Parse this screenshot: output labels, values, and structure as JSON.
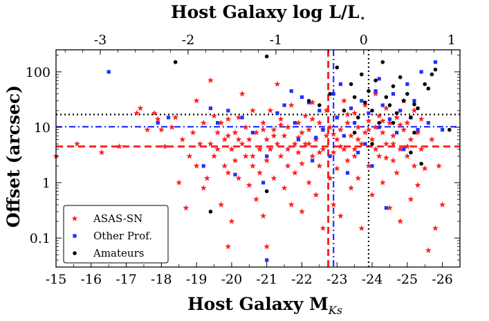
{
  "chart_data": {
    "type": "scatter",
    "title": "",
    "xlabel": "Host Galaxy M",
    "xlabel_sub": "Ks",
    "ylabel": "Offset (arcsec)",
    "top_xlabel": "Host Galaxy log L/L",
    "top_xlabel_sub": "⋆",
    "x_reversed": true,
    "xlim": [
      -15,
      -26.5
    ],
    "ylim": [
      0.03,
      250
    ],
    "y_scale": "log",
    "x_ticks": [
      -15,
      -16,
      -17,
      -18,
      -19,
      -20,
      -21,
      -22,
      -23,
      -24,
      -25,
      -26
    ],
    "x_tick_labels": [
      "-15",
      "-16",
      "-17",
      "-18",
      "-19",
      "-20",
      "-21",
      "-22",
      "-23",
      "-24",
      "-25",
      "-26"
    ],
    "y_ticks": [
      0.1,
      1,
      10,
      100
    ],
    "y_tick_labels": [
      "0.1",
      "1",
      "10",
      "100"
    ],
    "top_ticks_logL": [
      -3,
      -2,
      -1,
      0,
      1
    ],
    "top_tick_labels": [
      "-3",
      "-2",
      "-1",
      "0",
      "1"
    ],
    "top_mapping": {
      "note": "log L/L* = 0 at M_Ks = -23.76; 1 dex = 2.5 mag",
      "m_star": -23.76
    },
    "legend_position": "lower-left",
    "reference_lines": [
      {
        "series": "ASAS-SN",
        "orientation": "horizontal",
        "value": 4.5,
        "style": "dashed",
        "color": "#ff2020"
      },
      {
        "series": "ASAS-SN",
        "orientation": "vertical",
        "value": -22.75,
        "style": "dashed",
        "color": "#ff2020"
      },
      {
        "series": "Other Prof.",
        "orientation": "horizontal",
        "value": 10.2,
        "style": "dashdot",
        "color": "#2030ff"
      },
      {
        "series": "Other Prof.",
        "orientation": "vertical",
        "value": -22.9,
        "style": "dashdot",
        "color": "#2030ff"
      },
      {
        "series": "Amateurs",
        "orientation": "horizontal",
        "value": 17,
        "style": "dotted",
        "color": "#000000"
      },
      {
        "series": "Amateurs",
        "orientation": "vertical",
        "value": -23.9,
        "style": "dotted",
        "color": "#000000"
      }
    ],
    "series": [
      {
        "name": "ASAS-SN",
        "marker": "star",
        "color": "#ff2020",
        "points": [
          [
            -15.0,
            3.0
          ],
          [
            -15.6,
            5.0
          ],
          [
            -16.3,
            3.5
          ],
          [
            -16.8,
            4.5
          ],
          [
            -17.3,
            18
          ],
          [
            -17.4,
            22
          ],
          [
            -17.6,
            9
          ],
          [
            -17.8,
            18
          ],
          [
            -17.9,
            14
          ],
          [
            -18.0,
            9
          ],
          [
            -18.1,
            4.5
          ],
          [
            -18.3,
            10
          ],
          [
            -18.4,
            15
          ],
          [
            -18.5,
            1.0
          ],
          [
            -18.6,
            6
          ],
          [
            -18.7,
            0.35
          ],
          [
            -18.8,
            3
          ],
          [
            -18.9,
            8
          ],
          [
            -19.0,
            30
          ],
          [
            -19.0,
            2.0
          ],
          [
            -19.1,
            5
          ],
          [
            -19.2,
            0.8
          ],
          [
            -19.2,
            12
          ],
          [
            -19.3,
            1.2
          ],
          [
            -19.4,
            70
          ],
          [
            -19.4,
            5
          ],
          [
            -19.5,
            16
          ],
          [
            -19.5,
            3
          ],
          [
            -19.6,
            8
          ],
          [
            -19.7,
            0.4
          ],
          [
            -19.7,
            12
          ],
          [
            -19.8,
            6
          ],
          [
            -19.8,
            2
          ],
          [
            -19.9,
            1.5
          ],
          [
            -19.9,
            0.07
          ],
          [
            -19.9,
            14
          ],
          [
            -20.0,
            0.2
          ],
          [
            -20.0,
            4
          ],
          [
            -20.1,
            8
          ],
          [
            -20.1,
            2.5
          ],
          [
            -20.2,
            1.2
          ],
          [
            -20.2,
            15
          ],
          [
            -20.3,
            40
          ],
          [
            -20.3,
            5
          ],
          [
            -20.4,
            3
          ],
          [
            -20.4,
            10
          ],
          [
            -20.5,
            0.9
          ],
          [
            -20.5,
            6
          ],
          [
            -20.6,
            2
          ],
          [
            -20.6,
            20
          ],
          [
            -20.7,
            0.5
          ],
          [
            -20.7,
            8
          ],
          [
            -20.8,
            4
          ],
          [
            -20.8,
            1.5
          ],
          [
            -20.9,
            12
          ],
          [
            -20.9,
            0.25
          ],
          [
            -21.0,
            6
          ],
          [
            -21.0,
            2.5
          ],
          [
            -21.0,
            0.07
          ],
          [
            -21.1,
            20
          ],
          [
            -21.1,
            4
          ],
          [
            -21.2,
            9
          ],
          [
            -21.2,
            1.2
          ],
          [
            -21.3,
            60
          ],
          [
            -21.3,
            5
          ],
          [
            -21.4,
            3
          ],
          [
            -21.4,
            14
          ],
          [
            -21.5,
            0.8
          ],
          [
            -21.5,
            7
          ],
          [
            -21.6,
            2
          ],
          [
            -21.6,
            10
          ],
          [
            -21.7,
            25
          ],
          [
            -21.7,
            0.4
          ],
          [
            -21.8,
            5
          ],
          [
            -21.8,
            1.5
          ],
          [
            -21.9,
            12
          ],
          [
            -21.9,
            3.5
          ],
          [
            -22.0,
            0.3
          ],
          [
            -22.0,
            8
          ],
          [
            -22.0,
            2.2
          ],
          [
            -22.1,
            16
          ],
          [
            -22.1,
            5
          ],
          [
            -22.2,
            1.0
          ],
          [
            -22.2,
            9
          ],
          [
            -22.3,
            3
          ],
          [
            -22.3,
            28
          ],
          [
            -22.4,
            6
          ],
          [
            -22.4,
            0.6
          ],
          [
            -22.5,
            12
          ],
          [
            -22.5,
            2
          ],
          [
            -22.6,
            4
          ],
          [
            -22.6,
            0.15
          ],
          [
            -22.7,
            20
          ],
          [
            -22.7,
            7
          ],
          [
            -22.8,
            1.2
          ],
          [
            -22.8,
            10
          ],
          [
            -22.9,
            3.5
          ],
          [
            -22.9,
            0.4
          ],
          [
            -23.0,
            15
          ],
          [
            -23.0,
            6
          ],
          [
            -23.0,
            1.8
          ],
          [
            -23.1,
            9
          ],
          [
            -23.1,
            0.25
          ],
          [
            -23.2,
            4
          ],
          [
            -23.2,
            30
          ],
          [
            -23.3,
            12
          ],
          [
            -23.3,
            2.5
          ],
          [
            -23.4,
            7
          ],
          [
            -23.4,
            0.8
          ],
          [
            -23.5,
            18
          ],
          [
            -23.5,
            4
          ],
          [
            -23.6,
            1.2
          ],
          [
            -23.6,
            10
          ],
          [
            -23.7,
            5
          ],
          [
            -23.7,
            0.15
          ],
          [
            -23.8,
            25
          ],
          [
            -23.8,
            8
          ],
          [
            -23.9,
            2
          ],
          [
            -23.9,
            13
          ],
          [
            -24.0,
            6
          ],
          [
            -24.0,
            0.6
          ],
          [
            -24.1,
            40
          ],
          [
            -24.1,
            10
          ],
          [
            -24.2,
            3
          ],
          [
            -24.2,
            16
          ],
          [
            -24.3,
            1.0
          ],
          [
            -24.3,
            8
          ],
          [
            -24.4,
            5
          ],
          [
            -24.4,
            22
          ],
          [
            -24.5,
            0.35
          ],
          [
            -24.5,
            12
          ],
          [
            -24.6,
            2.5
          ],
          [
            -24.6,
            7
          ],
          [
            -24.7,
            15
          ],
          [
            -24.7,
            1.5
          ],
          [
            -24.8,
            4
          ],
          [
            -24.8,
            0.2
          ],
          [
            -24.9,
            9
          ],
          [
            -24.9,
            30
          ],
          [
            -25.0,
            3
          ],
          [
            -25.0,
            12
          ],
          [
            -25.1,
            0.5
          ],
          [
            -25.1,
            6
          ],
          [
            -25.2,
            20
          ],
          [
            -25.2,
            2
          ],
          [
            -25.3,
            8
          ],
          [
            -25.3,
            0.9
          ],
          [
            -25.4,
            4
          ],
          [
            -25.4,
            14
          ],
          [
            -25.5,
            1.8
          ],
          [
            -25.6,
            0.06
          ],
          [
            -25.7,
            6
          ],
          [
            -25.8,
            0.15
          ],
          [
            -25.9,
            2
          ],
          [
            -26.0,
            0.4
          ],
          [
            -20.2,
            6
          ],
          [
            -20.6,
            3
          ],
          [
            -21.2,
            7
          ],
          [
            -21.6,
            4
          ],
          [
            -22.2,
            5
          ],
          [
            -22.6,
            9
          ],
          [
            -23.1,
            4.5
          ],
          [
            -23.6,
            6
          ],
          [
            -24.1,
            4
          ],
          [
            -24.6,
            5
          ],
          [
            -25.0,
            4.5
          ],
          [
            -22.3,
            14
          ],
          [
            -23.3,
            17
          ],
          [
            -24.3,
            13
          ],
          [
            -21.9,
            6.5
          ],
          [
            -22.9,
            7.5
          ],
          [
            -23.9,
            9
          ],
          [
            -24.8,
            11
          ],
          [
            -20.9,
            9
          ],
          [
            -21.4,
            11
          ],
          [
            -22.5,
            3.5
          ],
          [
            -23.5,
            3
          ],
          [
            -24.4,
            2.8
          ],
          [
            -19.6,
            4
          ],
          [
            -19.9,
            7
          ]
        ]
      },
      {
        "name": "Other Prof.",
        "marker": "square",
        "color": "#2030ff",
        "points": [
          [
            -16.5,
            100
          ],
          [
            -17.9,
            12
          ],
          [
            -18.2,
            15
          ],
          [
            -19.2,
            2.0
          ],
          [
            -19.4,
            22
          ],
          [
            -19.6,
            12
          ],
          [
            -19.9,
            20
          ],
          [
            -20.3,
            15
          ],
          [
            -20.6,
            8
          ],
          [
            -20.9,
            1.0
          ],
          [
            -21.0,
            0.04
          ],
          [
            -21.0,
            3
          ],
          [
            -21.3,
            18
          ],
          [
            -21.5,
            25
          ],
          [
            -21.8,
            12
          ],
          [
            -21.9,
            6
          ],
          [
            -22.0,
            35
          ],
          [
            -22.2,
            28
          ],
          [
            -22.3,
            2.5
          ],
          [
            -22.5,
            20
          ],
          [
            -22.6,
            9
          ],
          [
            -22.8,
            3
          ],
          [
            -22.9,
            40
          ],
          [
            -23.0,
            15
          ],
          [
            -23.1,
            60
          ],
          [
            -23.2,
            7
          ],
          [
            -23.3,
            1.5
          ],
          [
            -23.4,
            22
          ],
          [
            -23.5,
            12
          ],
          [
            -23.7,
            30
          ],
          [
            -23.8,
            5
          ],
          [
            -23.9,
            18
          ],
          [
            -24.0,
            2
          ],
          [
            -24.1,
            45
          ],
          [
            -24.2,
            10
          ],
          [
            -24.3,
            25
          ],
          [
            -24.4,
            0.35
          ],
          [
            -24.5,
            14
          ],
          [
            -24.6,
            40
          ],
          [
            -24.7,
            8
          ],
          [
            -24.8,
            20
          ],
          [
            -24.9,
            4
          ],
          [
            -25.0,
            60
          ],
          [
            -25.1,
            15
          ],
          [
            -25.2,
            30
          ],
          [
            -25.3,
            9
          ],
          [
            -25.4,
            100
          ],
          [
            -25.6,
            12
          ],
          [
            -25.8,
            150
          ],
          [
            -26.0,
            9
          ],
          [
            -21.7,
            45
          ],
          [
            -22.4,
            6.5
          ],
          [
            -23.6,
            3.5
          ],
          [
            -20.1,
            1.4
          ],
          [
            -24.2,
            75
          ]
        ]
      },
      {
        "name": "Amateurs",
        "marker": "circle",
        "color": "#000000",
        "points": [
          [
            -18.4,
            150
          ],
          [
            -19.4,
            0.3
          ],
          [
            -21.0,
            190
          ],
          [
            -21.0,
            0.7
          ],
          [
            -22.2,
            30
          ],
          [
            -22.5,
            25
          ],
          [
            -22.8,
            40
          ],
          [
            -23.0,
            120
          ],
          [
            -23.2,
            20
          ],
          [
            -23.4,
            60
          ],
          [
            -23.5,
            35
          ],
          [
            -23.6,
            15
          ],
          [
            -23.7,
            90
          ],
          [
            -23.8,
            28
          ],
          [
            -23.9,
            45
          ],
          [
            -24.0,
            20
          ],
          [
            -24.1,
            70
          ],
          [
            -24.2,
            12
          ],
          [
            -24.3,
            150
          ],
          [
            -24.4,
            35
          ],
          [
            -24.5,
            25
          ],
          [
            -24.6,
            55
          ],
          [
            -24.7,
            18
          ],
          [
            -24.8,
            80
          ],
          [
            -24.9,
            30
          ],
          [
            -25.0,
            40
          ],
          [
            -25.1,
            15
          ],
          [
            -25.2,
            8
          ],
          [
            -25.3,
            22
          ],
          [
            -25.4,
            2.2
          ],
          [
            -25.5,
            60
          ],
          [
            -25.6,
            50
          ],
          [
            -25.7,
            90
          ],
          [
            -25.8,
            110
          ],
          [
            -26.2,
            9
          ],
          [
            -23.5,
            8
          ],
          [
            -24.0,
            5
          ],
          [
            -24.6,
            12
          ],
          [
            -25.1,
            3.5
          ],
          [
            -25.2,
            26
          ]
        ]
      }
    ]
  }
}
